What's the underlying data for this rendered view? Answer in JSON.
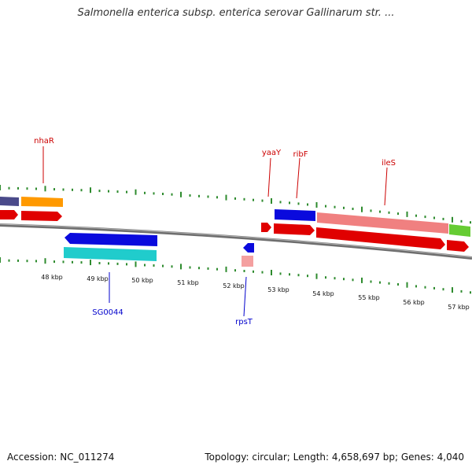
{
  "title": "Salmonella enterica subsp. enterica serovar Gallinarum str. ...",
  "footer": {
    "accession": "Accession: NC_011274",
    "summary": "Topology: circular; Length: 4,658,697 bp; Genes: 4,040"
  },
  "colors": {
    "backbone": "#808080",
    "tick": "#2e8b2e",
    "top_label": "#cc0000",
    "bottom_label": "#0000cc"
  },
  "axis": {
    "unit": "kbp",
    "ticks": [
      "48 kbp",
      "49 kbp",
      "50 kbp",
      "51 kbp",
      "52 kbp",
      "53 kbp",
      "54 kbp",
      "55 kbp",
      "56 kbp",
      "57 kbp"
    ]
  },
  "gene_labels": {
    "top": [
      "nhaR",
      "yaaY",
      "ribF",
      "ileS"
    ],
    "bottom": [
      "SG0044",
      "rpsT"
    ]
  }
}
